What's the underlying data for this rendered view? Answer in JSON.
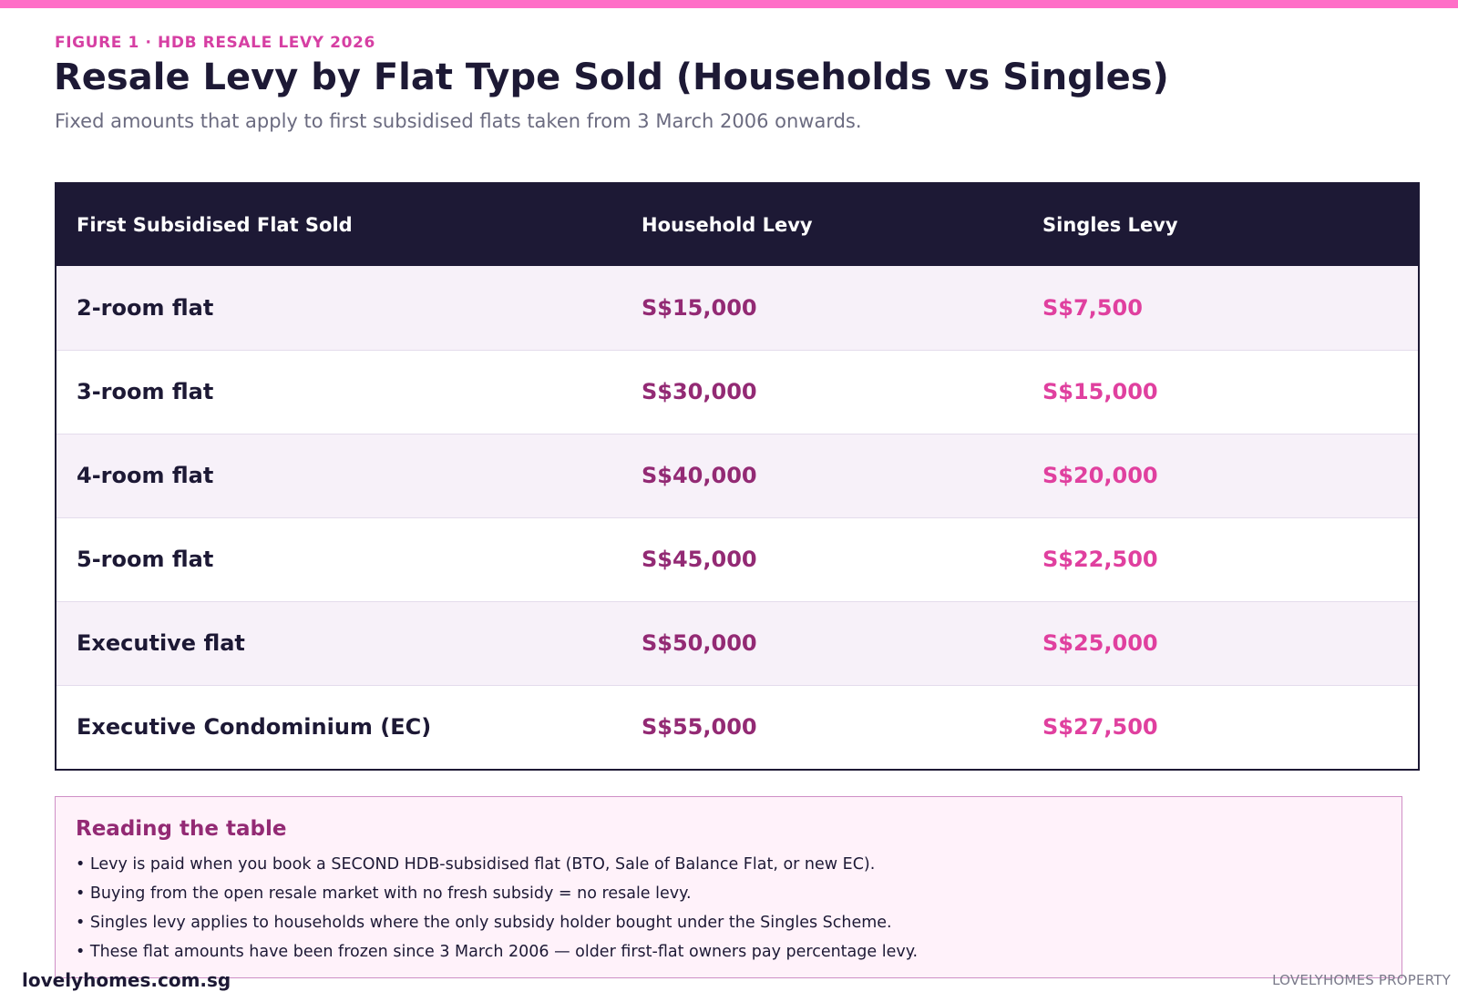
{
  "header": {
    "eyebrow": "FIGURE 1 · HDB RESALE LEVY 2026",
    "title": "Resale Levy by Flat Type Sold (Households vs Singles)",
    "subtitle": "Fixed amounts that apply to first subsidised flats taken from 3 March 2006 onwards."
  },
  "table": {
    "columns": [
      "First Subsidised Flat Sold",
      "Household Levy",
      "Singles Levy"
    ],
    "rows": [
      {
        "flat": "2-room flat",
        "household": "S$15,000",
        "singles": "S$7,500"
      },
      {
        "flat": "3-room flat",
        "household": "S$30,000",
        "singles": "S$15,000"
      },
      {
        "flat": "4-room flat",
        "household": "S$40,000",
        "singles": "S$20,000"
      },
      {
        "flat": "5-room flat",
        "household": "S$45,000",
        "singles": "S$22,500"
      },
      {
        "flat": "Executive flat",
        "household": "S$50,000",
        "singles": "S$25,000"
      },
      {
        "flat": "Executive Condominium (EC)",
        "household": "S$55,000",
        "singles": "S$27,500"
      }
    ]
  },
  "notes": {
    "title": "Reading the table",
    "items": [
      "Levy is paid when you book a SECOND HDB-subsidised flat (BTO, Sale of Balance Flat, or new EC).",
      "Buying from the open resale market with no fresh subsidy = no resale levy.",
      "Singles levy applies to households where the only subsidy holder bought under the Singles Scheme.",
      "These flat amounts have been frozen since 3 March 2006 — older first-flat owners pay percentage levy."
    ]
  },
  "footer": {
    "site": "lovelyhomes.com.sg",
    "brand": "LOVELYHOMES PROPERTY"
  },
  "colors": {
    "accent_pink": "#ff6ec7",
    "navy": "#1d1935",
    "household_purple": "#932a74",
    "singles_pink": "#e0409f"
  }
}
